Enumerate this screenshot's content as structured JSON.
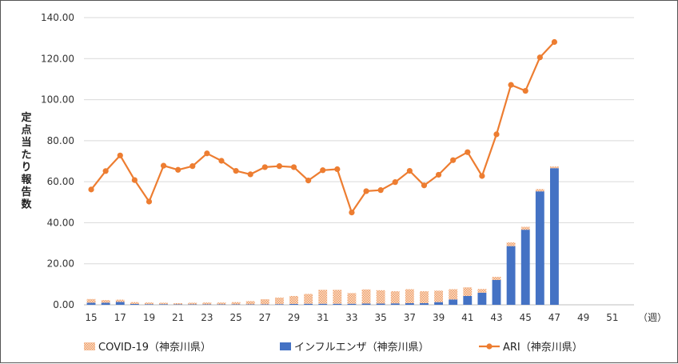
{
  "chart_data": {
    "type": "bar",
    "title": "",
    "xlabel": "（週）",
    "ylabel": "定点当たり報告数",
    "ylim": [
      0,
      140
    ],
    "y_ticks": [
      "0.00",
      "20.00",
      "40.00",
      "60.00",
      "80.00",
      "100.00",
      "120.00",
      "140.00"
    ],
    "x_tick_labels": [
      "15",
      "17",
      "19",
      "21",
      "23",
      "25",
      "27",
      "29",
      "31",
      "33",
      "35",
      "37",
      "39",
      "41",
      "43",
      "45",
      "47",
      "49",
      "51"
    ],
    "weeks": [
      15,
      16,
      17,
      18,
      19,
      20,
      21,
      22,
      23,
      24,
      25,
      26,
      27,
      28,
      29,
      30,
      31,
      32,
      33,
      34,
      35,
      36,
      37,
      38,
      39,
      40,
      41,
      42,
      43,
      44,
      45,
      46,
      47,
      48,
      49,
      50,
      51,
      52
    ],
    "stacked": true,
    "grid": true,
    "legend_position": "bottom",
    "series": [
      {
        "name": "COVID-19（神奈川県）",
        "kind": "bar",
        "color": "#f4b183",
        "values": [
          1.8,
          1.3,
          1.1,
          0.9,
          0.8,
          0.7,
          0.6,
          0.8,
          0.9,
          0.9,
          1.1,
          1.6,
          2.5,
          3.2,
          3.9,
          4.8,
          6.8,
          6.8,
          5.2,
          6.9,
          6.5,
          5.9,
          6.8,
          5.8,
          5.6,
          5.0,
          4.2,
          1.8,
          1.5,
          1.8,
          1.4,
          1.1,
          0.8,
          null,
          null,
          null,
          null,
          null
        ]
      },
      {
        "name": "インフルエンザ（神奈川県）",
        "kind": "bar",
        "color": "#4472c4",
        "values": [
          1.0,
          1.0,
          1.4,
          0.4,
          0.3,
          0.3,
          0.2,
          0.2,
          0.2,
          0.2,
          0.2,
          0.2,
          0.2,
          0.3,
          0.4,
          0.5,
          0.5,
          0.5,
          0.5,
          0.6,
          0.6,
          0.7,
          0.8,
          0.8,
          1.3,
          2.6,
          4.3,
          5.9,
          12.1,
          28.6,
          36.6,
          55.3,
          66.6,
          null,
          null,
          null,
          null,
          null
        ]
      },
      {
        "name": "ARI（神奈川県）",
        "kind": "line",
        "color": "#ed7d31",
        "values": [
          56.2,
          65.2,
          72.8,
          60.8,
          50.3,
          67.8,
          65.8,
          67.6,
          73.8,
          70.2,
          65.3,
          63.6,
          67.1,
          67.6,
          67.1,
          60.6,
          65.6,
          66.1,
          45.0,
          55.4,
          55.9,
          59.8,
          65.3,
          58.2,
          63.4,
          70.5,
          74.4,
          62.8,
          83.1,
          107.2,
          104.3,
          120.6,
          128.1,
          null,
          null,
          null,
          null,
          null
        ]
      }
    ]
  }
}
